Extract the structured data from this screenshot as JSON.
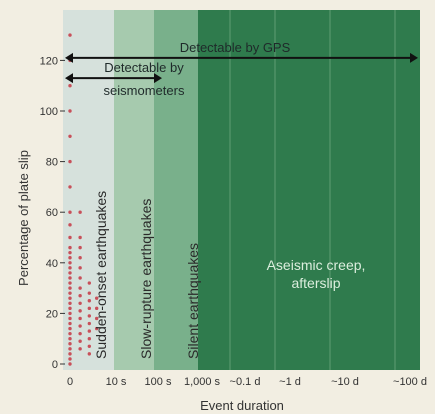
{
  "chart_data": {
    "type": "scatter",
    "ylabel": "Percentage of plate slip",
    "xlabel": "Event duration",
    "ylim": [
      0,
      130
    ],
    "yticks": [
      0,
      20,
      40,
      60,
      80,
      100,
      120
    ],
    "xtick_labels": [
      "0",
      "10 s",
      "100 s",
      "1,000 s",
      "~0.1 d",
      "~1 d",
      "~10 d",
      "~100 d"
    ],
    "grid": true,
    "regions": [
      {
        "label": "Sudden-onset earthquakes",
        "from": 0,
        "to": 1,
        "color": "#d6e1dc"
      },
      {
        "label": "Slow-rupture earthquakes",
        "from": 1,
        "to": 2,
        "color": "#a6caae"
      },
      {
        "label": "Silent earthquakes",
        "from": 2,
        "to": 3,
        "color": "#79b08b"
      },
      {
        "label": "Aseismic creep, afterslip",
        "from": 3,
        "to": 7,
        "color": "#2f7b4d"
      }
    ],
    "arrows": [
      {
        "label": "Detectable by GPS",
        "y": 121,
        "from": 0,
        "to": 7
      },
      {
        "label": "Detectable by seismometers",
        "y": 113,
        "from": 0,
        "to": 2
      }
    ],
    "series": [
      {
        "x": 0,
        "values": [
          0,
          2,
          4,
          6,
          8,
          10,
          12,
          14,
          16,
          18,
          20,
          22,
          24,
          26,
          28,
          30,
          32,
          34,
          36,
          38,
          40,
          42,
          44,
          46,
          50,
          55,
          60,
          70,
          80,
          90,
          100,
          110,
          120,
          130
        ],
        "color": "#c8505a"
      },
      {
        "x": 0.22,
        "values": [
          6,
          9,
          12,
          15,
          18,
          21,
          24,
          27,
          30,
          34,
          38,
          42,
          46,
          50,
          60
        ],
        "color": "#c8505a"
      },
      {
        "x": 0.42,
        "values": [
          4,
          7,
          10,
          13,
          16,
          19,
          22,
          25,
          28,
          32
        ],
        "color": "#c8505a"
      },
      {
        "x": 0.58,
        "values": [
          14,
          18,
          22,
          26
        ],
        "color": "#c8505a"
      }
    ]
  }
}
